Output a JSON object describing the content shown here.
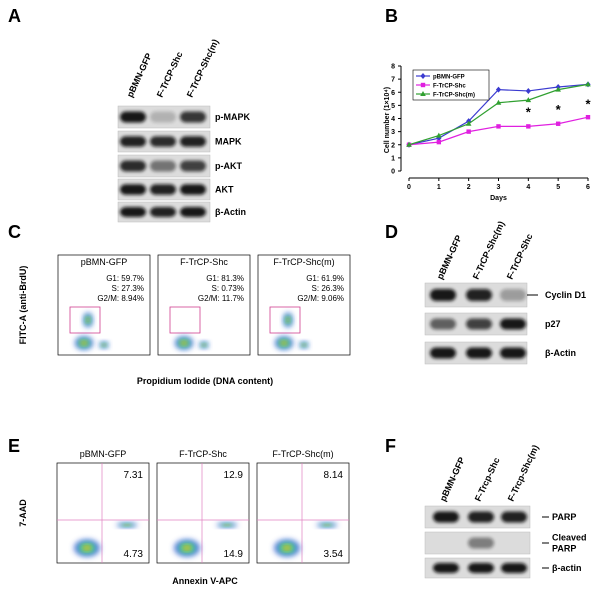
{
  "panel_labels": [
    "A",
    "B",
    "C",
    "D",
    "E",
    "F"
  ],
  "panel_a": {
    "lanes": [
      "pBMN-GFP",
      "F-TrCP-Shc",
      "F-TrCP-Shc(m)"
    ],
    "bands": [
      "p-MAPK",
      "MAPK",
      "p-AKT",
      "AKT",
      "β-Actin"
    ]
  },
  "chart_data": {
    "type": "line",
    "x_label": "Days",
    "y_label": "Cell number (1×10⁴)",
    "x": [
      0,
      1,
      2,
      3,
      4,
      5,
      6
    ],
    "xlim": [
      0,
      6
    ],
    "xticks": [
      0,
      1,
      2,
      3,
      4,
      5,
      6
    ],
    "ylim": [
      0,
      8
    ],
    "yticks": [
      0,
      1,
      2,
      3,
      4,
      5,
      6,
      7,
      8
    ],
    "legend": "upper left",
    "series": [
      {
        "name": "pBMN-GFP",
        "color": "#3b3bd0",
        "marker": "diamond",
        "values": [
          2.0,
          2.5,
          3.8,
          6.2,
          6.1,
          6.4,
          6.6
        ]
      },
      {
        "name": "F-TrCP-Shc",
        "color": "#e020e0",
        "marker": "square",
        "values": [
          2.0,
          2.2,
          3.0,
          3.4,
          3.4,
          3.6,
          4.1
        ]
      },
      {
        "name": "F-TrCP-Shc(m)",
        "color": "#30a030",
        "marker": "triangle",
        "values": [
          2.0,
          2.7,
          3.6,
          5.2,
          5.4,
          6.2,
          6.6
        ]
      }
    ],
    "annotations": [
      {
        "text": "*",
        "x": 4,
        "y": 4.3
      },
      {
        "text": "*",
        "x": 5,
        "y": 4.5
      },
      {
        "text": "*",
        "x": 6,
        "y": 4.9
      }
    ]
  },
  "panel_c": {
    "y_label": "FITC-A (anti-BrdU)",
    "x_label": "Propidium Iodide (DNA content)",
    "plots": [
      {
        "title": "pBMN-GFP",
        "lines": [
          "G1: 59.7%",
          "S: 27.3%",
          "G2/M: 8.94%"
        ]
      },
      {
        "title": "F-TrCP-Shc",
        "lines": [
          "G1: 81.3%",
          "S: 0.73%",
          "G2/M: 11.7%"
        ]
      },
      {
        "title": "F-TrCP-Shc(m)",
        "lines": [
          "G1: 61.9%",
          "S: 26.3%",
          "G2/M: 9.06%"
        ]
      }
    ]
  },
  "panel_d": {
    "lanes": [
      "pBMN-GFP",
      "F-TrCP-Shc(m)",
      "F-TrCP-Shc"
    ],
    "bands": [
      "Cyclin D1",
      "p27",
      "β-Actin"
    ]
  },
  "panel_e": {
    "y_label": "7-AAD",
    "x_label": "Annexin V-APC",
    "plots": [
      {
        "title": "pBMN-GFP",
        "upper_right": 7.31,
        "lower_right": 4.73
      },
      {
        "title": "F-TrCP-Shc",
        "upper_right": 12.9,
        "lower_right": 14.9
      },
      {
        "title": "F-TrCP-Shc(m)",
        "upper_right": 8.14,
        "lower_right": 3.54
      }
    ]
  },
  "panel_f": {
    "lanes": [
      "pBMN-GFP",
      "F-Trcp-Shc",
      "F-Trcp-Shc(m)"
    ],
    "bands": [
      [
        "PARP"
      ],
      [
        "Cleaved",
        "PARP"
      ],
      [
        "β-actin"
      ]
    ]
  }
}
